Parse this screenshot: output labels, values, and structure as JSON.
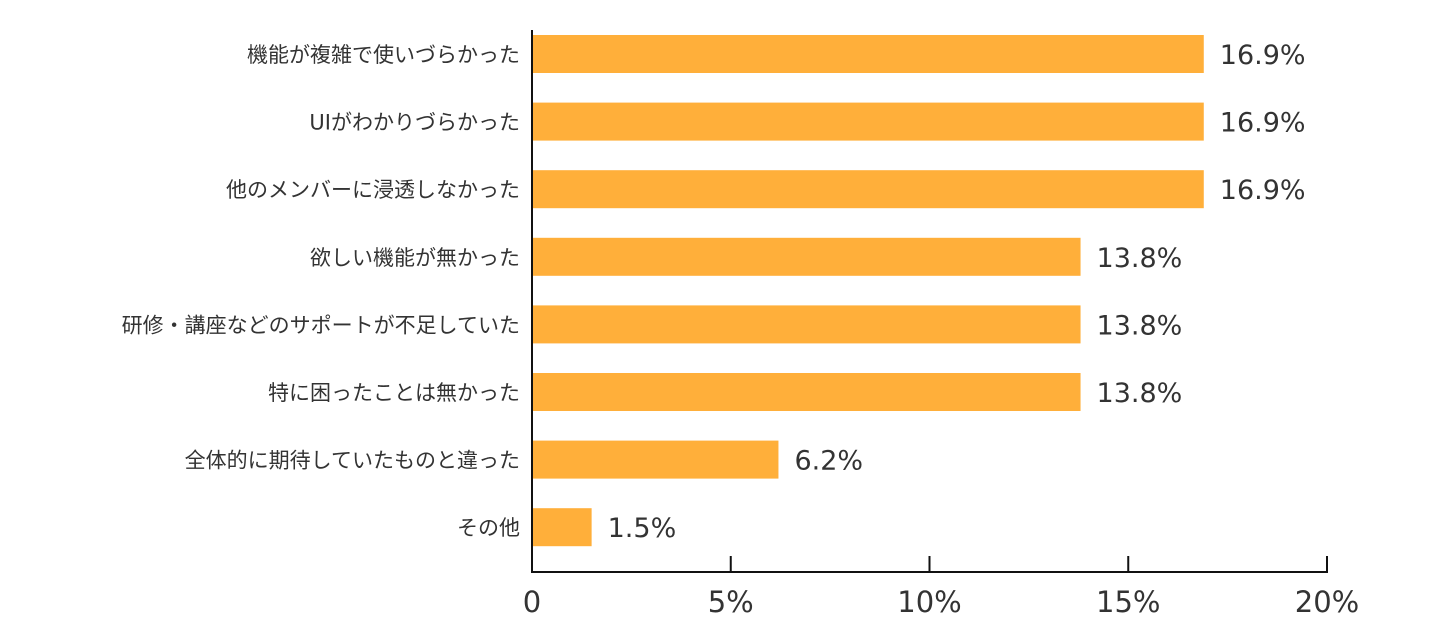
{
  "chart_data": {
    "type": "bar",
    "orientation": "horizontal",
    "title": "",
    "xlabel": "",
    "ylabel": "",
    "categories": [
      "機能が複雑で使いづらかった",
      "UIがわかりづらかった",
      "他のメンバーに浸透しなかった",
      "欲しい機能が無かった",
      "研修・講座などのサポートが不足していた",
      "特に困ったことは無かった",
      "全体的に期待していたものと違った",
      "その他"
    ],
    "values": [
      16.9,
      16.9,
      16.9,
      13.8,
      13.8,
      13.8,
      6.2,
      1.5
    ],
    "value_labels": [
      "16.9%",
      "16.9%",
      "16.9%",
      "13.8%",
      "13.8%",
      "13.8%",
      "6.2%",
      "1.5%"
    ],
    "xlim": [
      0,
      20
    ],
    "xticks": [
      0,
      5,
      10,
      15,
      20
    ],
    "xtick_labels": [
      "0",
      "5%",
      "10%",
      "15%",
      "20%"
    ],
    "grid": false,
    "legend": "none",
    "bar_color": "#FFAF3A",
    "axis_color": "#111111"
  }
}
